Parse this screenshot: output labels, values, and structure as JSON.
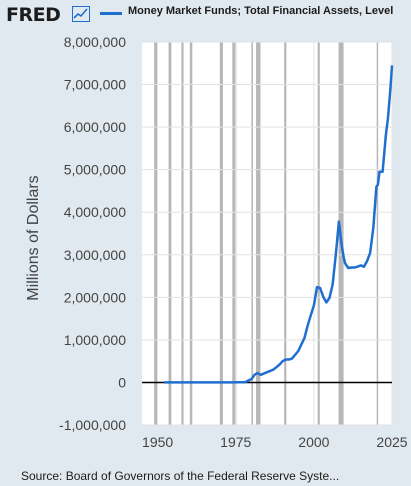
{
  "header": {
    "logo_text": "FRED",
    "logo_icon": "chart-line-icon",
    "legend_label": "Money Market Funds; Total Financial Assets, Level"
  },
  "source_text": "Source: Board of Governors of the Federal Reserve Syste...",
  "colors": {
    "background": "#e1e9f0",
    "plot_background": "#ffffff",
    "series": "#1f6fd0",
    "recession": "#b7b7b7",
    "zero_line": "#000000"
  },
  "chart_data": {
    "type": "line",
    "title": "",
    "ylabel": "Millions of Dollars",
    "xlabel": "",
    "xlim": [
      1945,
      2025
    ],
    "ylim": [
      -1000000,
      8000000
    ],
    "x_ticks": [
      1950,
      1975,
      2000,
      2025
    ],
    "x_tick_labels": [
      "1950",
      "1975",
      "2000",
      "2025"
    ],
    "y_ticks": [
      -1000000,
      0,
      1000000,
      2000000,
      3000000,
      4000000,
      5000000,
      6000000,
      7000000,
      8000000
    ],
    "y_tick_labels": [
      "-1,000,000",
      "0",
      "1,000,000",
      "2,000,000",
      "3,000,000",
      "4,000,000",
      "5,000,000",
      "6,000,000",
      "7,000,000",
      "8,000,000"
    ],
    "recessions": [
      [
        1948.9,
        1949.8
      ],
      [
        1953.5,
        1954.4
      ],
      [
        1957.6,
        1958.3
      ],
      [
        1960.3,
        1961.1
      ],
      [
        1969.9,
        1970.9
      ],
      [
        1973.9,
        1975.2
      ],
      [
        1980.0,
        1980.5
      ],
      [
        1981.5,
        1982.9
      ],
      [
        1990.5,
        1991.2
      ],
      [
        2001.2,
        2001.9
      ],
      [
        2007.9,
        2009.5
      ],
      [
        2020.1,
        2020.3
      ]
    ],
    "series": [
      {
        "name": "Money Market Funds; Total Financial Assets, Level",
        "x": [
          1952,
          1960,
          1970,
          1974,
          1976,
          1978,
          1979,
          1980,
          1981,
          1982,
          1983,
          1985,
          1987,
          1989,
          1990,
          1991,
          1992,
          1993,
          1995,
          1997,
          1998,
          1999,
          2000,
          2001,
          2002,
          2003,
          2004,
          2005,
          2006,
          2007,
          2008,
          2008.8,
          2009.5,
          2010,
          2011,
          2012,
          2013,
          2014,
          2015,
          2016,
          2017,
          2018,
          2019,
          2020,
          2020.5,
          2021,
          2022,
          2023,
          2023.7,
          2024.5,
          2025
        ],
        "y": [
          0,
          0,
          0,
          2000,
          4000,
          6000,
          45000,
          76000,
          180000,
          220000,
          180000,
          240000,
          300000,
          420000,
          500000,
          540000,
          540000,
          560000,
          740000,
          1050000,
          1330000,
          1580000,
          1810000,
          2240000,
          2220000,
          2010000,
          1880000,
          1990000,
          2300000,
          3000000,
          3780000,
          3280000,
          2950000,
          2800000,
          2690000,
          2700000,
          2700000,
          2720000,
          2750000,
          2720000,
          2850000,
          3040000,
          3630000,
          4600000,
          4650000,
          4950000,
          4950000,
          5800000,
          6200000,
          6900000,
          7450000
        ]
      }
    ]
  }
}
